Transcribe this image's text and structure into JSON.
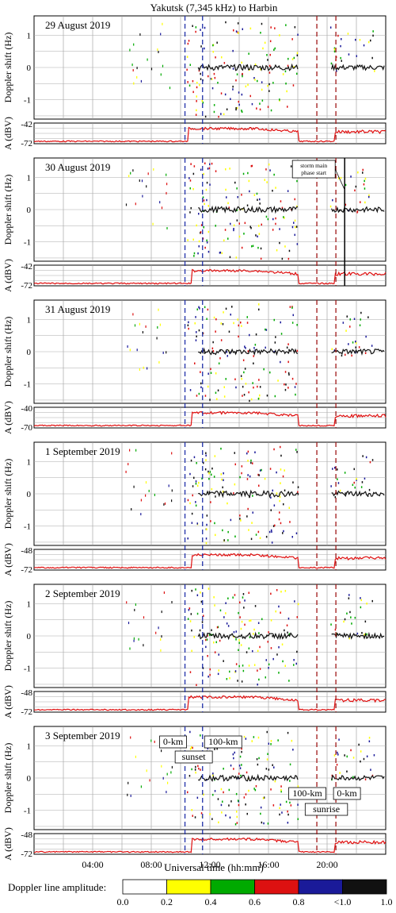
{
  "chart_data": {
    "type": "line",
    "title": "Yakutsk (7,345 kHz) to Harbin",
    "xlabel": "Universal time (hh:mm)",
    "ylabel_doppler": "Doppler shift (Hz)",
    "ylabel_amp": "A (dBV)",
    "x_range_hours": [
      0,
      24
    ],
    "x_ticks": [
      "04:00",
      "08:00",
      "12:00",
      "16:00",
      "20:00"
    ],
    "doppler_ylim": [
      -1.6,
      1.6
    ],
    "doppler_ticks": [
      "1",
      "0",
      "-1"
    ],
    "terminators": {
      "sunset_0km_h": 10.3,
      "sunset_100km_h": 11.5,
      "sunrise_100km_h": 19.3,
      "sunrise_0km_h": 20.6,
      "sunset_color": "#1f2fa8",
      "sunrise_color": "#a01818"
    },
    "annotations": {
      "sunset": "sunset",
      "sunrise": "sunrise",
      "zero_km": "0-km",
      "hundred_km": "100-km",
      "storm": "storm main phase start",
      "storm_line1": "storm main",
      "storm_line2": "phase start",
      "storm_day_index": 1,
      "storm_time_h": 21.2
    },
    "days": [
      {
        "label": "29 August 2019",
        "amp_top": "-42",
        "amp_bottom": "-72",
        "amp_on_h": 10.5
      },
      {
        "label": "30 August 2019",
        "amp_top": "-42",
        "amp_bottom": "-72",
        "amp_on_h": 10.8
      },
      {
        "label": "31 August 2019",
        "amp_top": "-40",
        "amp_bottom": "-70",
        "amp_on_h": 10.8
      },
      {
        "label": "1 September 2019",
        "amp_top": "-48",
        "amp_bottom": "-72",
        "amp_on_h": 10.8
      },
      {
        "label": "2 September 2019",
        "amp_top": "-48",
        "amp_bottom": "-72",
        "amp_on_h": 10.5
      },
      {
        "label": "3 September 2019",
        "amp_top": "-48",
        "amp_bottom": "-72",
        "amp_on_h": 10.8
      }
    ],
    "colorbar": {
      "label": "Doppler line amplitude:",
      "ticks": [
        "0.0",
        "0.2",
        "0.4",
        "0.6",
        "0.8",
        "<1.0",
        "1.0"
      ],
      "colors": [
        "#ffffff",
        "#ffff00",
        "#00aa00",
        "#dd1111",
        "#1a1a99",
        "#111111"
      ]
    }
  }
}
